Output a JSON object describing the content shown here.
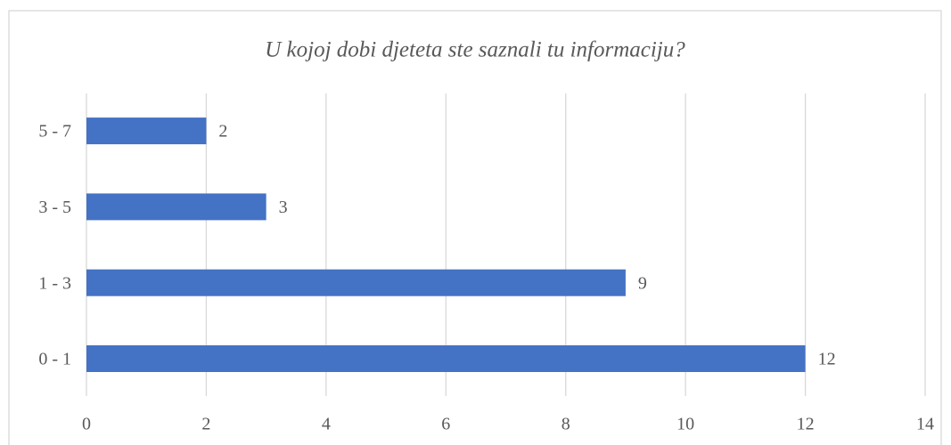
{
  "chart_data": {
    "type": "hbar",
    "title": "U kojoj dobi djeteta ste saznali tu informaciju?",
    "categories": [
      "0 - 1",
      "1 - 3",
      "3 - 5",
      "5 - 7"
    ],
    "values": [
      12,
      9,
      3,
      2
    ],
    "color": "#4472c4",
    "xlim": [
      0,
      14
    ],
    "xticks": [
      0,
      2,
      4,
      6,
      8,
      10,
      12,
      14
    ],
    "grid": true
  }
}
